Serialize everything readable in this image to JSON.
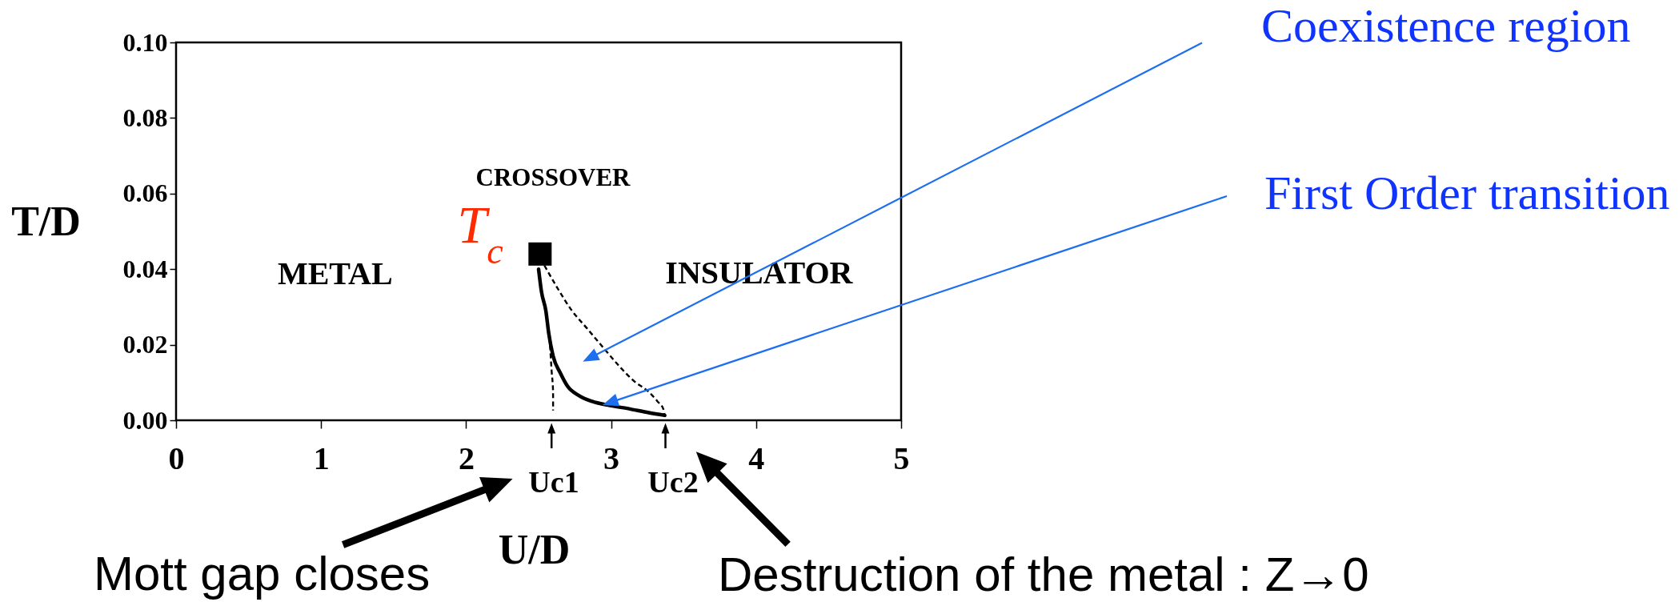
{
  "chart_data": {
    "type": "line",
    "xlabel": "U/D",
    "ylabel": "T/D",
    "xlim": [
      0,
      5
    ],
    "xticks": [
      0,
      1,
      2,
      3,
      4,
      5
    ],
    "ylim": [
      0,
      0.1
    ],
    "yticks": [
      {
        "value": 0,
        "label": "0.00"
      },
      0.02,
      0.04,
      0.06,
      0.08,
      {
        "value": 0.1,
        "label": "0.10"
      }
    ],
    "series": [
      {
        "color": "#000000",
        "line_style": "solid",
        "x": [
          2.5,
          2.52,
          2.55,
          2.57,
          2.6,
          2.65,
          2.7,
          2.78,
          2.87,
          2.98,
          3.13,
          3.26,
          3.37
        ],
        "values": [
          0.04,
          0.034,
          0.029,
          0.023,
          0.017,
          0.0125,
          0.009,
          0.0065,
          0.005,
          0.004,
          0.003,
          0.002,
          0.0013
        ]
      },
      {
        "color": "#000000",
        "line_style": "dashed",
        "x": [
          2.57,
          2.58,
          2.59,
          2.6,
          2.6
        ],
        "values": [
          0.024,
          0.019,
          0.013,
          0.0075,
          0.0026
        ]
      },
      {
        "color": "#000000",
        "line_style": "dashed",
        "x": [
          2.54,
          2.63,
          2.73,
          2.83,
          2.94,
          3.05,
          3.16,
          3.26,
          3.32,
          3.36,
          3.37
        ],
        "values": [
          0.041,
          0.035,
          0.029,
          0.0245,
          0.0195,
          0.0146,
          0.0103,
          0.0075,
          0.005,
          0.003,
          0.0013
        ]
      },
      {
        "type": "scatter",
        "marker": "square",
        "color": "#000000",
        "x": [
          2.51
        ],
        "values": [
          0.044
        ]
      }
    ],
    "annotations": [
      "METAL",
      "CROSSOVER",
      {
        "text": "T$_{c}$",
        "x": 2.51,
        "y": 0.044
      },
      "INSULATOR",
      "Coexistence region",
      "First Order transition",
      "Uc1",
      "Uc2",
      "Mott gap closes",
      "Destruction of the metal : Z→0"
    ]
  }
}
